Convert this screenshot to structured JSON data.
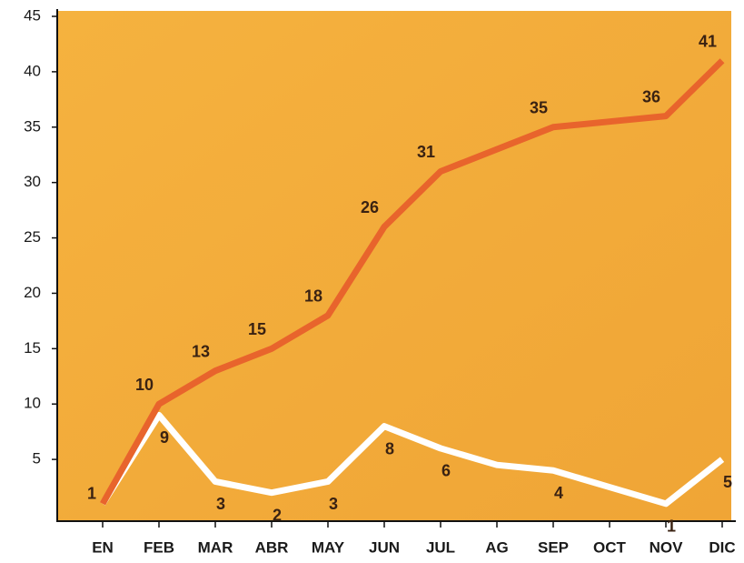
{
  "chart_data": {
    "type": "line",
    "categories": [
      "EN",
      "FEB",
      "MAR",
      "ABR",
      "MAY",
      "JUN",
      "JUL",
      "AG",
      "SEP",
      "OCT",
      "NOV",
      "DIC"
    ],
    "series": [
      {
        "color": "#e8642c",
        "values": [
          1,
          10,
          13,
          15,
          18,
          26,
          31,
          33,
          35,
          35.5,
          36,
          41
        ],
        "value_labels": [
          "1",
          "10",
          "13",
          "15",
          "18",
          "26",
          "31",
          null,
          "35",
          null,
          "36",
          "41"
        ]
      },
      {
        "color": "#ffffff",
        "values": [
          1,
          9,
          3,
          2,
          3,
          8,
          6,
          4.5,
          4,
          2.5,
          1,
          5
        ],
        "value_labels": [
          null,
          "9",
          "3",
          "2",
          "3",
          "8",
          "6",
          null,
          "4",
          null,
          "1",
          "5"
        ]
      }
    ],
    "ylim": [
      0,
      45
    ],
    "yticks": [
      5,
      10,
      15,
      20,
      25,
      30,
      35,
      40,
      45
    ],
    "background": "#f2ac3a"
  }
}
